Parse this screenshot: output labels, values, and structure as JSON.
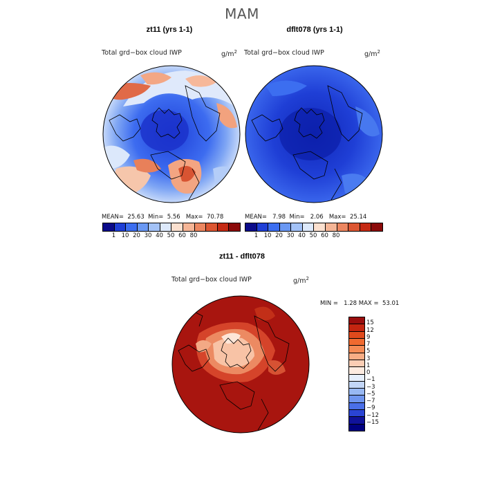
{
  "title": "MAM",
  "panels": [
    {
      "title": "zt11 (yrs 1-1)",
      "variable": "Total grd−box cloud IWP",
      "units": "g/m",
      "units_exp": "2",
      "stats": {
        "mean_label": "MEAN=",
        "mean": "25.63",
        "min_label": "Min=",
        "min": "5.56",
        "max_label": "Max=",
        "max": "70.78"
      },
      "colorbar_ticks": [
        "1",
        "10",
        "20",
        "30",
        "40",
        "50",
        "60",
        "80"
      ],
      "colors": [
        "#0b0b8a",
        "#1f3fd6",
        "#3c6ef0",
        "#6a98f3",
        "#a3c2f7",
        "#dde9fb",
        "#fbe0cf",
        "#f5b596",
        "#ec8660",
        "#dc5632",
        "#c52a14",
        "#8b0a0a"
      ]
    },
    {
      "title": "dflt078 (yrs 1-1)",
      "variable": "Total grd−box cloud IWP",
      "units": "g/m",
      "units_exp": "2",
      "stats": {
        "mean_label": "MEAN=",
        "mean": "7.98",
        "min_label": "Min=",
        "min": "2.06",
        "max_label": "Max=",
        "max": "25.14"
      },
      "colorbar_ticks": [
        "1",
        "10",
        "20",
        "30",
        "40",
        "50",
        "60",
        "80"
      ]
    }
  ],
  "difference": {
    "title": "zt11 - dflt078",
    "variable": "Total grd−box cloud IWP",
    "units": "g/m",
    "units_exp": "2",
    "stats": {
      "min_label": "MIN =",
      "min": "1.28",
      "max_label": "MAX =",
      "max": "53.01"
    },
    "colorbar_ticks": [
      "15",
      "12",
      "9",
      "7",
      "5",
      "3",
      "1",
      "0",
      "−1",
      "−3",
      "−5",
      "−7",
      "−9",
      "−12",
      "−15"
    ],
    "colors": [
      "#9a0d0d",
      "#c42510",
      "#e04a1c",
      "#f06a30",
      "#f58b55",
      "#f8ad85",
      "#fbcdb4",
      "#fdebe0",
      "#e6effc",
      "#c3d6f7",
      "#98b8f3",
      "#6f95ef",
      "#4a6fe8",
      "#2a44d4",
      "#10129a",
      "#000080"
    ]
  }
}
